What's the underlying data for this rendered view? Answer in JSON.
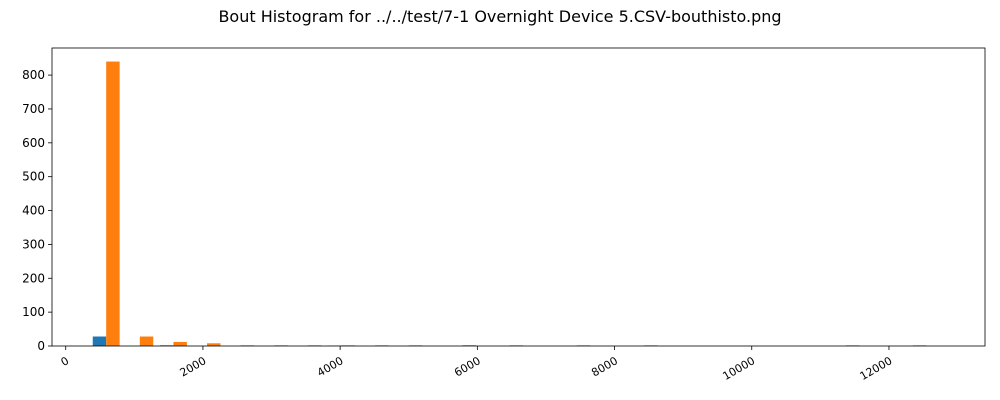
{
  "chart_data": {
    "type": "bar",
    "title": "Bout Histogram for ../../test/7-1 Overnight Device 5.CSV-bouthisto.png",
    "xlabel": "",
    "ylabel": "",
    "xlim": [
      -200,
      13400
    ],
    "ylim": [
      0,
      880
    ],
    "xticks": [
      0,
      2000,
      4000,
      6000,
      8000,
      10000,
      12000
    ],
    "xtick_labels": [
      "0",
      "2000",
      "4000",
      "6000",
      "8000",
      "10000",
      "12000"
    ],
    "yticks": [
      0,
      100,
      200,
      300,
      400,
      500,
      600,
      700,
      800
    ],
    "ytick_labels": [
      "0",
      "100",
      "200",
      "300",
      "400",
      "500",
      "600",
      "700",
      "800"
    ],
    "grid": false,
    "bin_width": 490,
    "x": [
      590,
      1080,
      1570,
      2060,
      2550,
      3040,
      3530,
      4020,
      4510,
      5000,
      5490,
      5980,
      6470,
      6960,
      7450,
      7940,
      8430,
      8920,
      9410,
      9900,
      10390,
      10880,
      11370,
      11860,
      12350
    ],
    "series": [
      {
        "color": "#1f77b4",
        "values": [
          28,
          0,
          2,
          0,
          0,
          0,
          0,
          1,
          0,
          0,
          0,
          2,
          0,
          0,
          0,
          0,
          0,
          0,
          0,
          0,
          0,
          0,
          0,
          0,
          0
        ]
      },
      {
        "color": "#ff7f0e",
        "values": [
          840,
          28,
          12,
          8,
          2,
          2,
          2,
          2,
          2,
          2,
          0,
          0,
          2,
          0,
          2,
          0,
          2,
          0,
          0,
          0,
          0,
          0,
          2,
          0,
          2
        ]
      }
    ]
  }
}
